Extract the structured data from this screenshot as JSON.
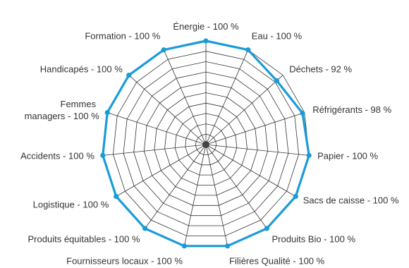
{
  "chart_data": {
    "type": "radar",
    "title": "",
    "axes": [
      "Énergie - 100 %",
      "Eau - 100 %",
      "Déchets - 92 %",
      "Réfrigérants - 98 %",
      "Papier - 100 %",
      "Sacs de caisse - 100 %",
      "Produits Bio - 100 %",
      "Filières Qualité - 100 %",
      "Fournisseurs locaux - 100 %",
      "Produits équitables - 100 %",
      "Logistique - 100 %",
      "Accidents - 100 %",
      "Femmes managers - 100 %",
      "Handicapés - 100 %",
      "Formation - 100 %"
    ],
    "values": [
      100,
      100,
      92,
      98,
      100,
      100,
      100,
      100,
      100,
      100,
      100,
      100,
      100,
      100,
      100
    ],
    "range": [
      0,
      100
    ],
    "grid_rings": 10,
    "colors": {
      "series": "#1a9bd7",
      "grid": "#333333"
    }
  }
}
